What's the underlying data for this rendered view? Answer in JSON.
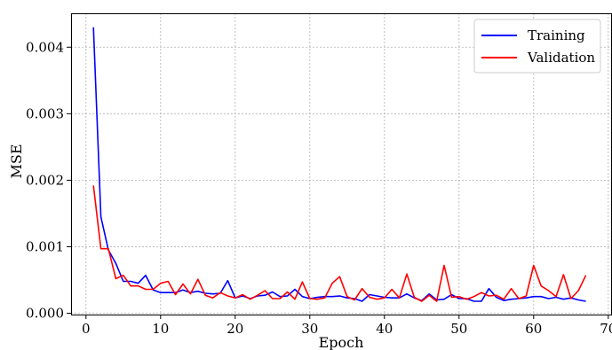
{
  "chart_data": {
    "type": "line",
    "xlabel": "Epoch",
    "ylabel": "MSE",
    "xlim": [
      -2,
      70.5
    ],
    "ylim": [
      -2e-05,
      0.00451
    ],
    "x_ticks": [
      0,
      10,
      20,
      30,
      40,
      50,
      60,
      70
    ],
    "x_tick_labels": [
      "0",
      "10",
      "20",
      "30",
      "40",
      "50",
      "60",
      "70"
    ],
    "y_ticks": [
      0,
      0.001,
      0.002,
      0.003,
      0.004
    ],
    "y_tick_labels": [
      "0.000",
      "0.001",
      "0.002",
      "0.003",
      "0.004"
    ],
    "grid": true,
    "legend_position": "top-right",
    "x": [
      1,
      2,
      3,
      4,
      5,
      6,
      7,
      8,
      9,
      10,
      11,
      12,
      13,
      14,
      15,
      16,
      17,
      18,
      19,
      20,
      21,
      22,
      23,
      24,
      25,
      26,
      27,
      28,
      29,
      30,
      31,
      32,
      33,
      34,
      35,
      36,
      37,
      38,
      39,
      40,
      41,
      42,
      43,
      44,
      45,
      46,
      47,
      48,
      49,
      50,
      51,
      52,
      53,
      54,
      55,
      56,
      57,
      58,
      59,
      60,
      61,
      62,
      63,
      64,
      65,
      66,
      67
    ],
    "series": [
      {
        "name": "Training",
        "color": "#0000ff",
        "values": [
          0.0043,
          0.00145,
          0.00095,
          0.00075,
          0.00048,
          0.00048,
          0.00045,
          0.00057,
          0.00035,
          0.00031,
          0.00031,
          0.00031,
          0.00035,
          0.00031,
          0.00033,
          0.0003,
          0.00029,
          0.0003,
          0.00049,
          0.00023,
          0.00026,
          0.00022,
          0.00026,
          0.00027,
          0.00032,
          0.00025,
          0.00026,
          0.00036,
          0.00025,
          0.00022,
          0.00024,
          0.00025,
          0.00025,
          0.00026,
          0.00023,
          0.00022,
          0.00018,
          0.00028,
          0.00026,
          0.00024,
          0.00023,
          0.00023,
          0.00029,
          0.00023,
          0.00019,
          0.00029,
          0.0002,
          0.00021,
          0.00028,
          0.00022,
          0.00022,
          0.00018,
          0.00018,
          0.00037,
          0.00024,
          0.00019,
          0.00021,
          0.00022,
          0.00023,
          0.00025,
          0.00025,
          0.00022,
          0.00024,
          0.00021,
          0.00023,
          0.0002,
          0.00018
        ]
      },
      {
        "name": "Validation",
        "color": "#ff0000",
        "values": [
          0.00192,
          0.00097,
          0.00097,
          0.00052,
          0.00057,
          0.00041,
          0.00041,
          0.00036,
          0.00036,
          0.00045,
          0.00048,
          0.00028,
          0.00044,
          0.00029,
          0.00051,
          0.00027,
          0.00023,
          0.00031,
          0.00026,
          0.00023,
          0.00028,
          0.00021,
          0.00027,
          0.00034,
          0.00022,
          0.00022,
          0.00032,
          0.00021,
          0.00047,
          0.00022,
          0.00021,
          0.00023,
          0.00045,
          0.00055,
          0.00025,
          0.0002,
          0.00037,
          0.00024,
          0.00021,
          0.00023,
          0.00036,
          0.00023,
          0.00059,
          0.00024,
          0.00018,
          0.00027,
          0.00018,
          0.00072,
          0.00024,
          0.00025,
          0.00021,
          0.00025,
          0.00031,
          0.00026,
          0.00027,
          0.00021,
          0.00037,
          0.00022,
          0.00026,
          0.00072,
          0.00041,
          0.00034,
          0.00025,
          0.00058,
          0.00022,
          0.00034,
          0.00057
        ]
      }
    ]
  }
}
